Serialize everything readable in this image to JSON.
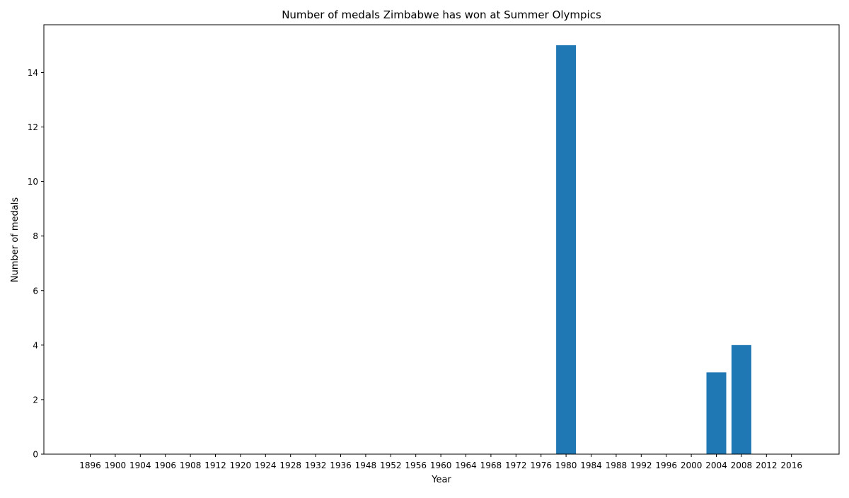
{
  "chart_data": {
    "type": "bar",
    "title": "Number of medals Zimbabwe has won at Summer Olympics",
    "xlabel": "Year",
    "ylabel": "Number of medals",
    "categories": [
      "1896",
      "1900",
      "1904",
      "1906",
      "1908",
      "1912",
      "1920",
      "1924",
      "1928",
      "1932",
      "1936",
      "1948",
      "1952",
      "1956",
      "1960",
      "1964",
      "1968",
      "1972",
      "1976",
      "1980",
      "1984",
      "1988",
      "1992",
      "1996",
      "2000",
      "2004",
      "2008",
      "2012",
      "2016"
    ],
    "values": [
      0,
      0,
      0,
      0,
      0,
      0,
      0,
      0,
      0,
      0,
      0,
      0,
      0,
      0,
      0,
      0,
      0,
      0,
      0,
      15,
      0,
      0,
      0,
      0,
      0,
      3,
      4,
      0,
      0
    ],
    "ylim": [
      0,
      15.75
    ],
    "yticks": [
      0,
      2,
      4,
      6,
      8,
      10,
      12,
      14
    ],
    "grid": false,
    "legend": "none",
    "bar_color": "#1f77b4"
  }
}
